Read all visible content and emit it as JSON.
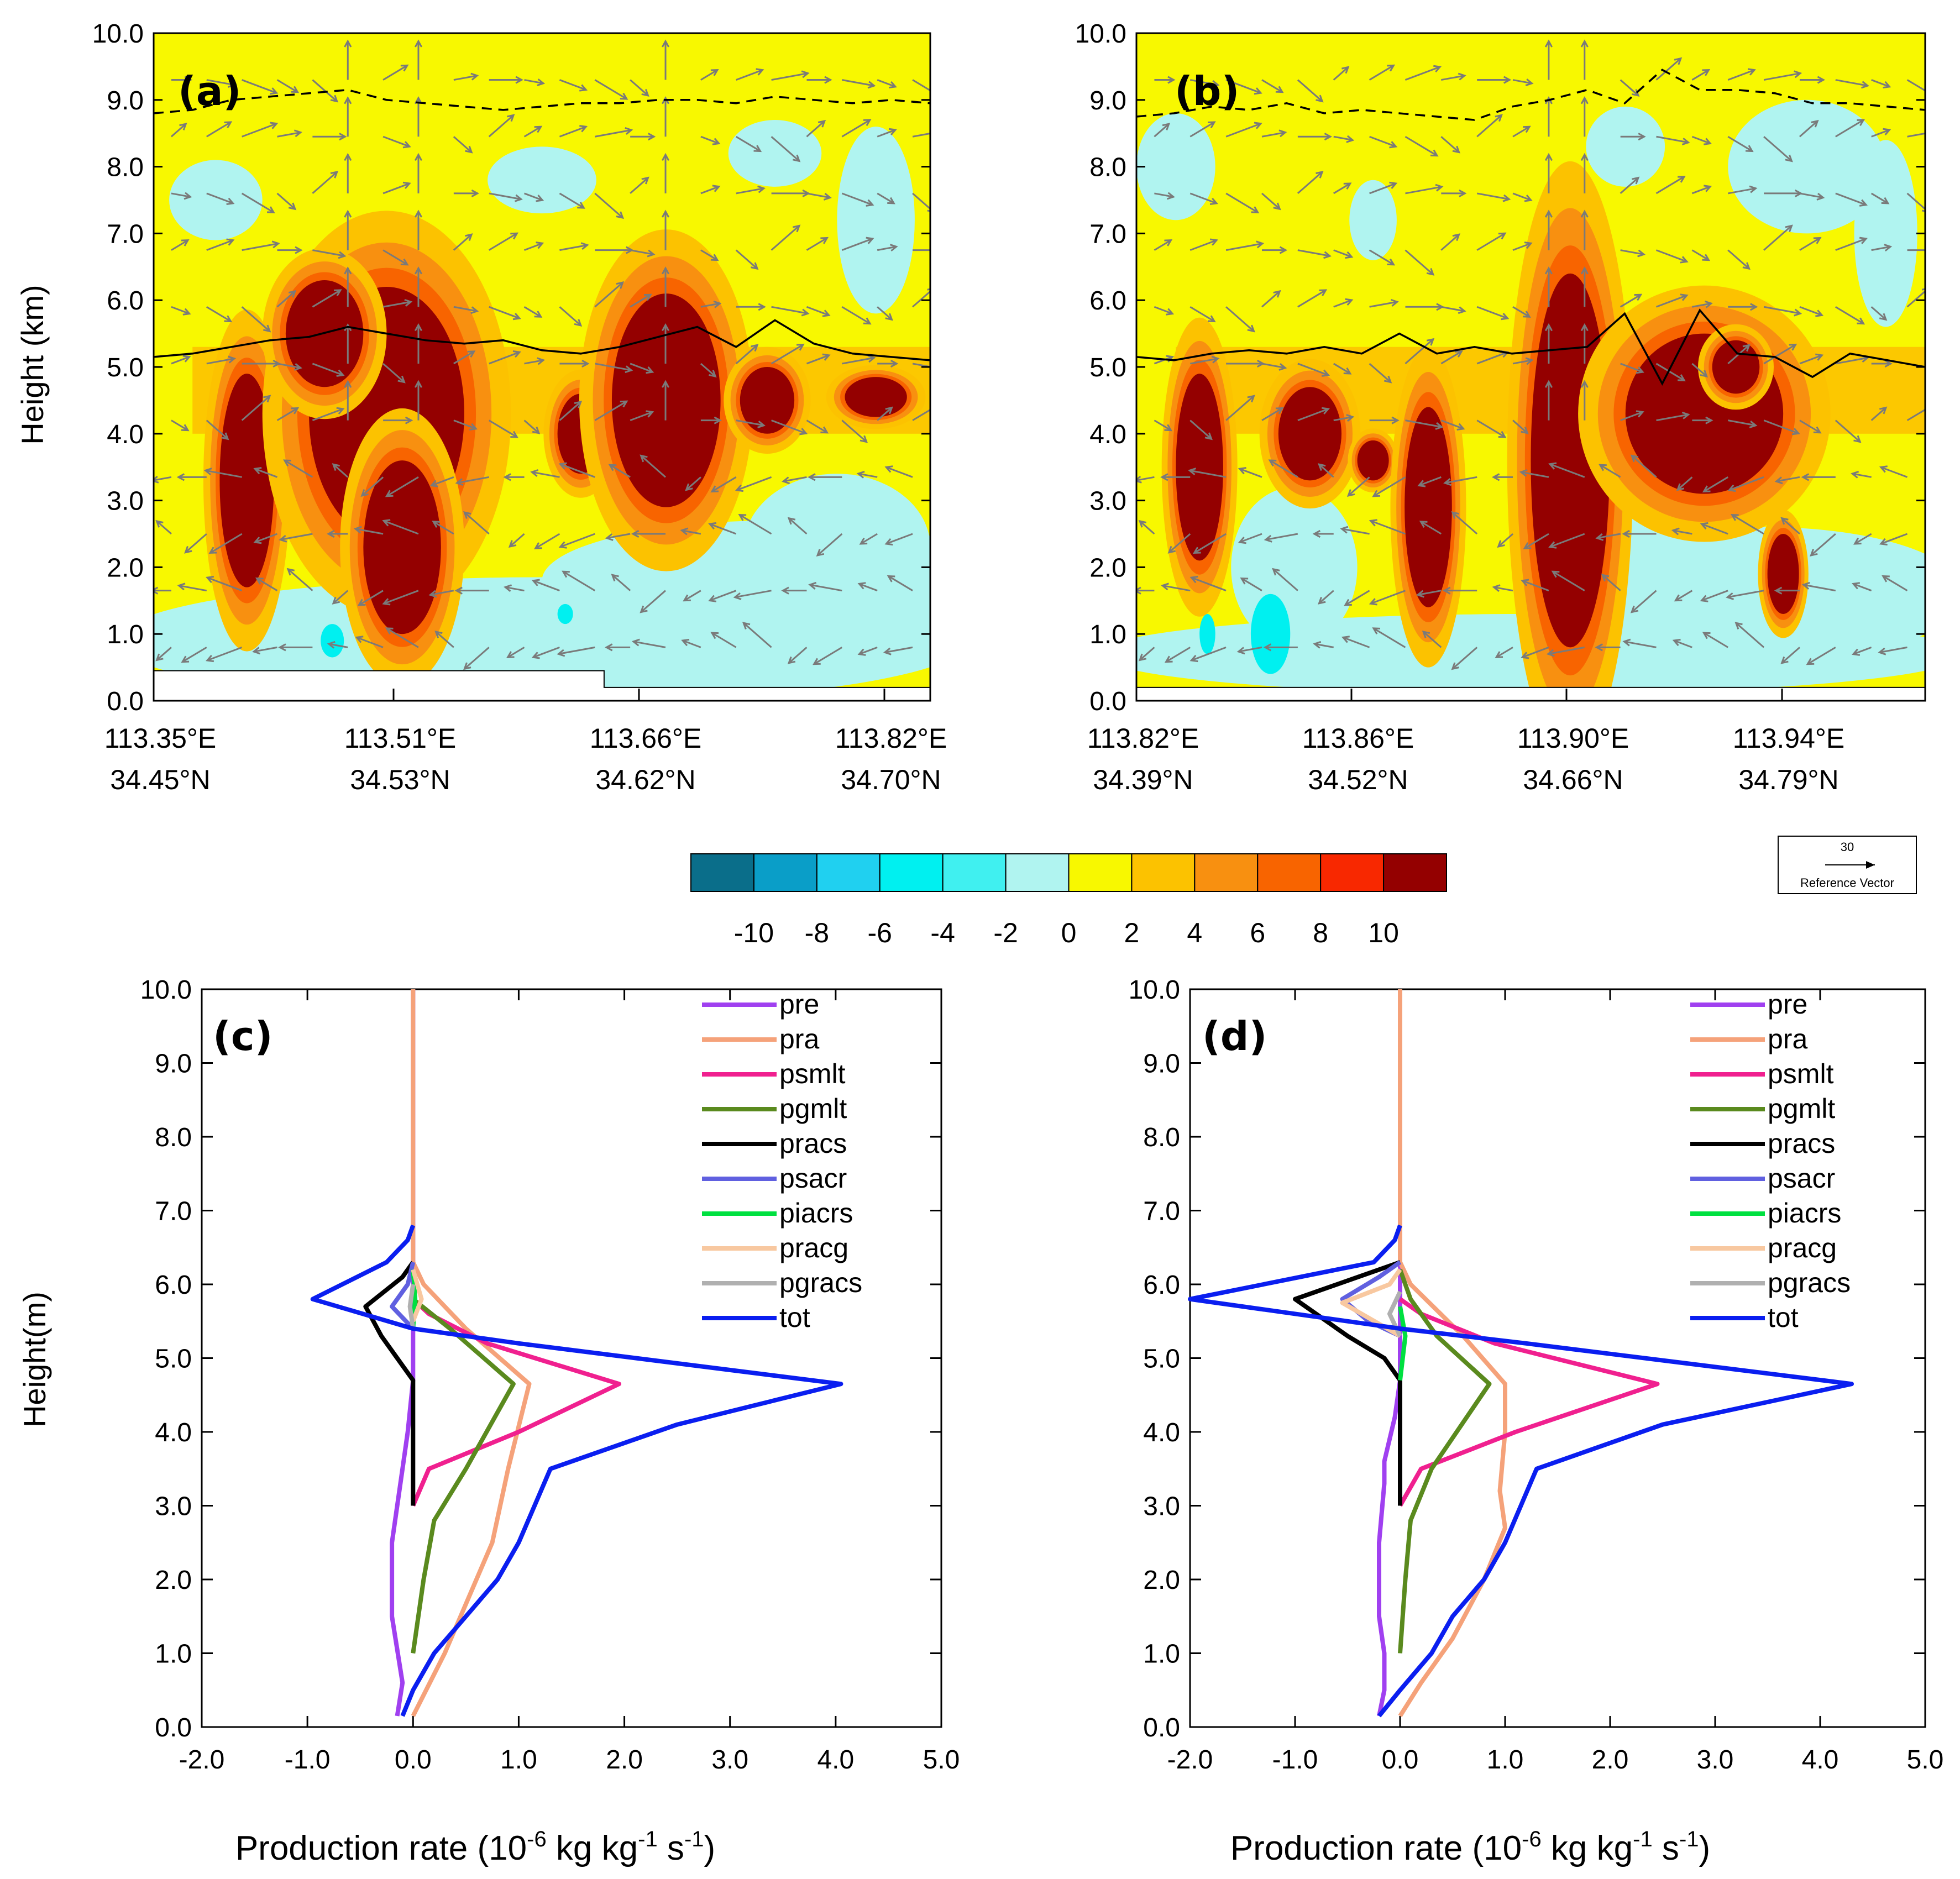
{
  "chart_data": [
    {
      "panel": "(a)",
      "type": "heatmap",
      "ylabel": "Height (km)",
      "ylim": [
        0,
        10
      ],
      "y_ticks": [
        "0.0",
        "1.0",
        "2.0",
        "3.0",
        "4.0",
        "5.0",
        "6.0",
        "7.0",
        "8.0",
        "9.0",
        "10.0"
      ],
      "x_ticks": [
        {
          "lon": "113.35°E",
          "lat": "34.45°N"
        },
        {
          "lon": "113.51°E",
          "lat": "34.53°N"
        },
        {
          "lon": "113.66°E",
          "lat": "34.62°N"
        },
        {
          "lon": "113.82°E",
          "lat": "34.70°N"
        }
      ],
      "freezing_level_km": [
        5.15,
        5.2,
        5.3,
        5.4,
        5.45,
        5.6,
        5.5,
        5.4,
        5.35,
        5.4,
        5.25,
        5.2,
        5.3,
        5.45,
        5.6,
        5.3,
        5.7,
        5.35,
        5.2,
        5.15,
        5.1
      ],
      "tropopause_km": [
        8.8,
        8.85,
        9.0,
        9.05,
        9.1,
        9.15,
        9.0,
        8.95,
        8.9,
        8.85,
        8.9,
        8.95,
        8.95,
        9.0,
        9.0,
        8.95,
        9.05,
        9.0,
        8.95,
        9.0,
        8.95
      ],
      "cores": [
        {
          "x": 0.12,
          "y": 3.3,
          "rx": 0.035,
          "ry": 1.6,
          "level": 10
        },
        {
          "x": 0.3,
          "y": 4.3,
          "rx": 0.1,
          "ry": 1.9,
          "level": 10
        },
        {
          "x": 0.32,
          "y": 2.3,
          "rx": 0.05,
          "ry": 1.3,
          "level": 10
        },
        {
          "x": 0.22,
          "y": 5.5,
          "rx": 0.05,
          "ry": 0.8,
          "level": 10
        },
        {
          "x": 0.55,
          "y": 4.0,
          "rx": 0.03,
          "ry": 0.6,
          "level": 10
        },
        {
          "x": 0.66,
          "y": 4.5,
          "rx": 0.07,
          "ry": 1.6,
          "level": 10
        },
        {
          "x": 0.79,
          "y": 4.5,
          "rx": 0.035,
          "ry": 0.5,
          "level": 10
        },
        {
          "x": 0.93,
          "y": 4.55,
          "rx": 0.04,
          "ry": 0.3,
          "level": 10
        }
      ]
    },
    {
      "panel": "(b)",
      "type": "heatmap",
      "ylabel": "",
      "ylim": [
        0,
        10
      ],
      "y_ticks": [
        "0.0",
        "1.0",
        "2.0",
        "3.0",
        "4.0",
        "5.0",
        "6.0",
        "7.0",
        "8.0",
        "9.0",
        "10.0"
      ],
      "x_ticks": [
        {
          "lon": "113.82°E",
          "lat": "34.39°N"
        },
        {
          "lon": "113.86°E",
          "lat": "34.52°N"
        },
        {
          "lon": "113.90°E",
          "lat": "34.66°N"
        },
        {
          "lon": "113.94°E",
          "lat": "34.79°N"
        }
      ],
      "freezing_level_km": [
        5.15,
        5.1,
        5.2,
        5.25,
        5.2,
        5.3,
        5.2,
        5.5,
        5.2,
        5.3,
        5.2,
        5.25,
        5.3,
        5.8,
        4.75,
        5.85,
        5.2,
        5.15,
        4.85,
        5.2,
        5.1,
        5.0
      ],
      "tropopause_km": [
        8.75,
        8.8,
        8.9,
        8.85,
        8.95,
        8.8,
        8.85,
        8.8,
        8.75,
        8.7,
        8.9,
        9.0,
        9.15,
        8.95,
        9.45,
        9.15,
        9.15,
        9.1,
        8.95,
        8.95,
        8.9,
        8.85
      ],
      "cores": [
        {
          "x": 0.08,
          "y": 3.5,
          "rx": 0.03,
          "ry": 1.4,
          "level": 10
        },
        {
          "x": 0.22,
          "y": 4.0,
          "rx": 0.04,
          "ry": 0.7,
          "level": 10
        },
        {
          "x": 0.3,
          "y": 3.6,
          "rx": 0.02,
          "ry": 0.3,
          "level": 10
        },
        {
          "x": 0.37,
          "y": 2.9,
          "rx": 0.03,
          "ry": 1.5,
          "level": 10
        },
        {
          "x": 0.55,
          "y": 3.6,
          "rx": 0.05,
          "ry": 2.8,
          "level": 10
        },
        {
          "x": 0.72,
          "y": 4.3,
          "rx": 0.1,
          "ry": 1.2,
          "level": 10
        },
        {
          "x": 0.82,
          "y": 1.9,
          "rx": 0.02,
          "ry": 0.6,
          "level": 10
        },
        {
          "x": 0.76,
          "y": 5.0,
          "rx": 0.03,
          "ry": 0.4,
          "level": 10
        }
      ]
    },
    {
      "panel": "(c)",
      "type": "line",
      "xlabel": "Production rate (10-6 kg kg-1 s-1)",
      "ylabel": "Height(m)",
      "xlim": [
        -2.0,
        5.0
      ],
      "ylim": [
        0.0,
        10.0
      ],
      "x_ticks": [
        "-2.0",
        "-1.0",
        "0.0",
        "1.0",
        "2.0",
        "3.0",
        "4.0",
        "5.0"
      ],
      "y_ticks": [
        "0.0",
        "1.0",
        "2.0",
        "3.0",
        "4.0",
        "5.0",
        "6.0",
        "7.0",
        "8.0",
        "9.0",
        "10.0"
      ],
      "series": [
        {
          "name": "pre",
          "color": "#a040f0",
          "points": [
            [
              -0.15,
              0.15
            ],
            [
              -0.1,
              0.6
            ],
            [
              -0.2,
              1.5
            ],
            [
              -0.2,
              2.5
            ],
            [
              -0.1,
              3.5
            ],
            [
              -0.05,
              4.0
            ],
            [
              0,
              4.7
            ],
            [
              0,
              10
            ]
          ]
        },
        {
          "name": "pra",
          "color": "#f5a27a",
          "points": [
            [
              0,
              0.15
            ],
            [
              0.3,
              1.0
            ],
            [
              0.75,
              2.5
            ],
            [
              0.9,
              3.5
            ],
            [
              1.1,
              4.65
            ],
            [
              0.5,
              5.4
            ],
            [
              0.1,
              6.0
            ],
            [
              0,
              6.3
            ],
            [
              0,
              10
            ]
          ]
        },
        {
          "name": "psmlt",
          "color": "#f0208f",
          "points": [
            [
              0,
              3.0
            ],
            [
              0.15,
              3.5
            ],
            [
              1.0,
              4.0
            ],
            [
              1.95,
              4.65
            ],
            [
              0.7,
              5.2
            ],
            [
              0.15,
              5.6
            ],
            [
              0,
              5.8
            ]
          ]
        },
        {
          "name": "pgmlt",
          "color": "#5a8a1e",
          "points": [
            [
              0,
              1.0
            ],
            [
              0.1,
              2.0
            ],
            [
              0.2,
              2.8
            ],
            [
              0.5,
              3.5
            ],
            [
              0.95,
              4.65
            ],
            [
              0.35,
              5.4
            ],
            [
              0,
              5.8
            ]
          ]
        },
        {
          "name": "pracs",
          "color": "#000000",
          "points": [
            [
              0,
              3.0
            ],
            [
              0,
              4.7
            ],
            [
              -0.15,
              5.0
            ],
            [
              -0.3,
              5.3
            ],
            [
              -0.45,
              5.7
            ],
            [
              -0.1,
              6.1
            ],
            [
              0,
              6.3
            ]
          ]
        },
        {
          "name": "psacr",
          "color": "#6060e0",
          "points": [
            [
              0,
              5.4
            ],
            [
              -0.2,
              5.7
            ],
            [
              -0.05,
              6.0
            ],
            [
              0,
              6.3
            ]
          ]
        },
        {
          "name": "piacrs",
          "color": "#00e040",
          "points": [
            [
              0,
              5.4
            ],
            [
              0.02,
              5.8
            ],
            [
              0,
              6.2
            ]
          ]
        },
        {
          "name": "pracg",
          "color": "#f8c8a0",
          "points": [
            [
              0,
              5.5
            ],
            [
              0.08,
              5.8
            ],
            [
              0,
              6.2
            ]
          ]
        },
        {
          "name": "pgracs",
          "color": "#b0b0b0",
          "points": [
            [
              0,
              5.4
            ],
            [
              -0.03,
              5.7
            ],
            [
              0,
              6.0
            ]
          ]
        },
        {
          "name": "tot",
          "color": "#0a1ef0",
          "points": [
            [
              -0.1,
              0.15
            ],
            [
              0,
              0.5
            ],
            [
              0.2,
              1.0
            ],
            [
              0.5,
              1.5
            ],
            [
              0.8,
              2.0
            ],
            [
              1.0,
              2.5
            ],
            [
              1.3,
              3.5
            ],
            [
              2.5,
              4.1
            ],
            [
              4.05,
              4.65
            ],
            [
              1.0,
              5.2
            ],
            [
              0,
              5.4
            ],
            [
              -0.95,
              5.8
            ],
            [
              -0.25,
              6.3
            ],
            [
              -0.05,
              6.6
            ],
            [
              0,
              6.8
            ]
          ]
        }
      ]
    },
    {
      "panel": "(d)",
      "type": "line",
      "xlabel": "Production rate (10-6 kg kg-1 s-1)",
      "ylabel": "",
      "xlim": [
        -2.0,
        5.0
      ],
      "ylim": [
        0.0,
        10.0
      ],
      "x_ticks": [
        "-2.0",
        "-1.0",
        "0.0",
        "1.0",
        "2.0",
        "3.0",
        "4.0",
        "5.0"
      ],
      "y_ticks": [
        "0.0",
        "1.0",
        "2.0",
        "3.0",
        "4.0",
        "5.0",
        "6.0",
        "7.0",
        "8.0",
        "9.0",
        "10.0"
      ],
      "series": [
        {
          "name": "pre",
          "color": "#a040f0",
          "points": [
            [
              -0.2,
              0.15
            ],
            [
              -0.15,
              0.5
            ],
            [
              -0.15,
              1.0
            ],
            [
              -0.2,
              1.5
            ],
            [
              -0.2,
              2.5
            ],
            [
              -0.15,
              3.3
            ],
            [
              -0.15,
              3.6
            ],
            [
              -0.05,
              4.2
            ],
            [
              0,
              4.7
            ],
            [
              0,
              10
            ]
          ]
        },
        {
          "name": "pra",
          "color": "#f5a27a",
          "points": [
            [
              0,
              0.15
            ],
            [
              0.2,
              0.6
            ],
            [
              0.5,
              1.2
            ],
            [
              0.8,
              2.0
            ],
            [
              1.0,
              2.7
            ],
            [
              0.95,
              3.2
            ],
            [
              1.0,
              4.0
            ],
            [
              1.0,
              4.65
            ],
            [
              0.6,
              5.3
            ],
            [
              0.1,
              6.0
            ],
            [
              0,
              6.3
            ],
            [
              0,
              10
            ]
          ]
        },
        {
          "name": "psmlt",
          "color": "#f0208f",
          "points": [
            [
              0,
              3.0
            ],
            [
              0.2,
              3.5
            ],
            [
              1.1,
              4.0
            ],
            [
              2.45,
              4.65
            ],
            [
              0.9,
              5.2
            ],
            [
              0.2,
              5.6
            ],
            [
              0,
              5.8
            ]
          ]
        },
        {
          "name": "pgmlt",
          "color": "#5a8a1e",
          "points": [
            [
              0,
              1.0
            ],
            [
              0.05,
              2.0
            ],
            [
              0.1,
              2.8
            ],
            [
              0.3,
              3.5
            ],
            [
              0.85,
              4.65
            ],
            [
              0.35,
              5.3
            ],
            [
              0.1,
              5.8
            ],
            [
              0,
              6.2
            ]
          ]
        },
        {
          "name": "pracs",
          "color": "#000000",
          "points": [
            [
              0,
              3.0
            ],
            [
              0,
              4.7
            ],
            [
              -0.15,
              5.0
            ],
            [
              -0.5,
              5.3
            ],
            [
              -1.0,
              5.8
            ],
            [
              -0.2,
              6.2
            ],
            [
              0,
              6.3
            ]
          ]
        },
        {
          "name": "psacr",
          "color": "#6060e0",
          "points": [
            [
              0,
              5.3
            ],
            [
              -0.3,
              5.5
            ],
            [
              -0.55,
              5.8
            ],
            [
              -0.2,
              6.1
            ],
            [
              0,
              6.3
            ]
          ]
        },
        {
          "name": "piacrs",
          "color": "#00e040",
          "points": [
            [
              0,
              4.7
            ],
            [
              0.05,
              5.3
            ],
            [
              0,
              5.7
            ]
          ]
        },
        {
          "name": "pracg",
          "color": "#f8c8a0",
          "points": [
            [
              0,
              5.3
            ],
            [
              -0.55,
              5.75
            ],
            [
              -0.1,
              6.0
            ],
            [
              0,
              6.2
            ]
          ]
        },
        {
          "name": "pgracs",
          "color": "#b0b0b0",
          "points": [
            [
              0,
              5.3
            ],
            [
              -0.1,
              5.6
            ],
            [
              0,
              5.9
            ]
          ]
        },
        {
          "name": "tot",
          "color": "#0a1ef0",
          "points": [
            [
              -0.2,
              0.15
            ],
            [
              0,
              0.5
            ],
            [
              0.3,
              1.0
            ],
            [
              0.5,
              1.5
            ],
            [
              0.8,
              2.0
            ],
            [
              1.0,
              2.5
            ],
            [
              1.3,
              3.5
            ],
            [
              2.5,
              4.1
            ],
            [
              4.3,
              4.65
            ],
            [
              1.2,
              5.2
            ],
            [
              0,
              5.4
            ],
            [
              -2.0,
              5.8
            ],
            [
              -0.25,
              6.3
            ],
            [
              -0.05,
              6.6
            ],
            [
              0,
              6.8
            ]
          ]
        }
      ]
    }
  ],
  "labels": {
    "panel_a": "(a)",
    "panel_b": "(b)",
    "panel_c": "(c)",
    "panel_d": "(d)",
    "ylabel_top": "Height (km)",
    "ylabel_bottom": "Height(m)",
    "xlabel_bottom_prefix": "Production rate (10",
    "xlabel_bottom_exp1": "-6",
    "xlabel_bottom_mid": " kg kg",
    "xlabel_bottom_exp2": "-1",
    "xlabel_bottom_s": " s",
    "xlabel_bottom_exp3": "-1",
    "xlabel_bottom_suffix": ")"
  },
  "colorbar": {
    "colors": [
      "#0a6e8a",
      "#0a9ec8",
      "#20d0f0",
      "#00f0f0",
      "#40f0f0",
      "#b0f4f0",
      "#f8f800",
      "#fcc200",
      "#f89010",
      "#f86400",
      "#f82800",
      "#940000"
    ],
    "tick_labels": [
      "-10",
      "-8",
      "-6",
      "-4",
      "-2",
      "0",
      "2",
      "4",
      "6",
      "8",
      "10"
    ]
  },
  "reference_vector": {
    "value": "30",
    "label": "Reference Vector"
  }
}
